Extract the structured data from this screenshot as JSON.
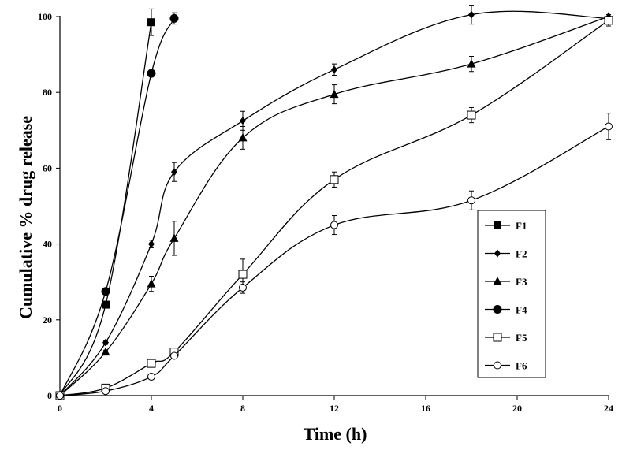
{
  "chart_data": {
    "type": "line",
    "title": "",
    "xlabel": "Time (h)",
    "ylabel": "Cumulative %  drug release",
    "xlim": [
      0,
      24
    ],
    "ylim": [
      0,
      100
    ],
    "xticks": [
      0,
      4,
      8,
      12,
      16,
      20,
      24
    ],
    "yticks": [
      0,
      20,
      40,
      60,
      80,
      100
    ],
    "grid": false,
    "legend_position": "center-right",
    "series": [
      {
        "name": "F1",
        "marker": "filled-square",
        "x": [
          0,
          2,
          4
        ],
        "y": [
          0,
          24,
          98.5
        ],
        "err": [
          0,
          0,
          3.5
        ]
      },
      {
        "name": "F2",
        "marker": "filled-diamond",
        "x": [
          0,
          2,
          4,
          5,
          8,
          12,
          18,
          24
        ],
        "y": [
          0,
          14,
          40,
          59,
          72.5,
          86,
          100.5,
          99.5
        ],
        "err": [
          0,
          0.5,
          1,
          2.5,
          2.5,
          1.5,
          2.5,
          0.5
        ]
      },
      {
        "name": "F3",
        "marker": "filled-triangle",
        "x": [
          0,
          2,
          4,
          5,
          8,
          12,
          18,
          24
        ],
        "y": [
          0,
          11.5,
          29.5,
          41.5,
          68,
          79.5,
          87.5,
          100
        ],
        "err": [
          0,
          0.5,
          2,
          4.5,
          3,
          2.5,
          2,
          0.5
        ]
      },
      {
        "name": "F4",
        "marker": "filled-circle",
        "x": [
          0,
          2,
          4,
          5
        ],
        "y": [
          0,
          27.5,
          85,
          99.5
        ],
        "err": [
          0,
          0,
          0,
          1.5
        ]
      },
      {
        "name": "F5",
        "marker": "open-square",
        "x": [
          0,
          2,
          4,
          5,
          8,
          12,
          18,
          24
        ],
        "y": [
          0,
          2,
          8.5,
          11.5,
          32,
          57,
          74,
          99
        ],
        "err": [
          0,
          0,
          0.5,
          1,
          4,
          2,
          2,
          1.5
        ]
      },
      {
        "name": "F6",
        "marker": "open-circle",
        "x": [
          0,
          2,
          4,
          5,
          8,
          12,
          18,
          24
        ],
        "y": [
          0,
          1.2,
          5,
          10.5,
          28.5,
          45,
          51.5,
          71
        ],
        "err": [
          0,
          0,
          0,
          0.5,
          1.5,
          2.5,
          2.5,
          3.5
        ]
      }
    ]
  }
}
